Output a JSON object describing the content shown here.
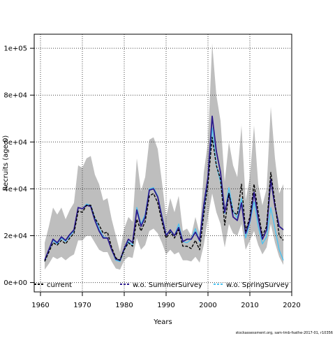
{
  "chart_data": {
    "type": "line",
    "title": "",
    "xlabel": "Years",
    "ylabel": "Recruits (age 0)",
    "xlim": [
      1958.5,
      2020.0
    ],
    "ylim": [
      -4000,
      106000
    ],
    "x_ticks": [
      1960,
      1970,
      1980,
      1990,
      2000,
      2010,
      2020
    ],
    "y_ticks": [
      0,
      20000,
      40000,
      60000,
      80000,
      100000
    ],
    "y_tick_labels": [
      "0e+00",
      "2e+04",
      "4e+04",
      "6e+04",
      "8e+04",
      "1e+05"
    ],
    "grid": true,
    "legend_position": "bottom",
    "x": [
      1961,
      1962,
      1963,
      1964,
      1965,
      1966,
      1967,
      1968,
      1969,
      1970,
      1971,
      1972,
      1973,
      1974,
      1975,
      1976,
      1977,
      1978,
      1979,
      1980,
      1981,
      1982,
      1983,
      1984,
      1985,
      1986,
      1987,
      1988,
      1989,
      1990,
      1991,
      1992,
      1993,
      1994,
      1995,
      1996,
      1997,
      1998,
      1999,
      2000,
      2001,
      2002,
      2003,
      2004,
      2005,
      2006,
      2007,
      2008,
      2009,
      2010,
      2011,
      2012,
      2013,
      2014,
      2015,
      2016,
      2017,
      2018
    ],
    "band": {
      "lower": [
        5500,
        8000,
        11000,
        10000,
        11000,
        9500,
        11000,
        12000,
        18000,
        18000,
        20000,
        20000,
        17000,
        14000,
        13000,
        13000,
        9000,
        6000,
        5500,
        9500,
        11000,
        10500,
        19000,
        14000,
        16000,
        22000,
        23000,
        21000,
        17000,
        12000,
        14000,
        12000,
        13000,
        9500,
        9500,
        9000,
        11000,
        8500,
        16000,
        28000,
        38000,
        30000,
        25000,
        15000,
        25000,
        21000,
        20000,
        25000,
        14000,
        18000,
        22000,
        16000,
        12000,
        15000,
        25000,
        17000,
        11000,
        7500
      ],
      "upper": [
        17000,
        24000,
        32000,
        29000,
        32000,
        27000,
        31000,
        34000,
        50000,
        49000,
        53000,
        54000,
        46000,
        42000,
        35000,
        36000,
        27000,
        20000,
        13000,
        23000,
        28000,
        26000,
        53000,
        39000,
        45000,
        61000,
        62000,
        57000,
        43000,
        28000,
        36000,
        30000,
        37000,
        22000,
        23000,
        20000,
        28000,
        21000,
        47000,
        60000,
        102000,
        80000,
        69000,
        43000,
        60000,
        50000,
        45000,
        67000,
        35000,
        45000,
        67000,
        42000,
        33000,
        40000,
        75000,
        53000,
        38000,
        42000
      ]
    },
    "series": [
      {
        "name": "current",
        "color": "#000000",
        "values": [
          9000,
          13000,
          17000,
          16000,
          18000,
          16500,
          19000,
          21000,
          30500,
          30000,
          33000,
          33000,
          27500,
          24500,
          21000,
          21500,
          15000,
          10500,
          9500,
          14000,
          17000,
          15500,
          27000,
          22000,
          26000,
          37000,
          38000,
          34000,
          26000,
          19000,
          21500,
          19000,
          22500,
          15500,
          15500,
          14500,
          18000,
          14000,
          29000,
          42000,
          62000,
          50000,
          44000,
          24500,
          38000,
          30000,
          29000,
          42000,
          22000,
          28000,
          42000,
          30000,
          20000,
          24000,
          47000,
          34000,
          20000,
          18000
        ]
      },
      {
        "name": "w.o. SummerSurvey",
        "color": "#2c1a8c",
        "values": [
          9500,
          14000,
          18500,
          17000,
          19500,
          18000,
          20500,
          22500,
          32000,
          31500,
          33000,
          32500,
          26500,
          22000,
          19000,
          19000,
          14000,
          10000,
          9500,
          14500,
          18500,
          17000,
          31000,
          24000,
          28000,
          39500,
          40000,
          36500,
          28000,
          20000,
          22500,
          20000,
          23500,
          17500,
          18500,
          18500,
          21500,
          18000,
          33000,
          45000,
          71000,
          56000,
          47000,
          30000,
          38000,
          28000,
          26500,
          34000,
          21000,
          26500,
          38500,
          27500,
          18500,
          22500,
          44000,
          32500,
          24000,
          22500
        ]
      },
      {
        "name": "w.o. SpringSurvey",
        "color": "#4ec3f0",
        "values": [
          9000,
          13500,
          18000,
          16500,
          19000,
          17500,
          20000,
          22000,
          32000,
          31500,
          33500,
          33000,
          27500,
          23000,
          19500,
          19000,
          14000,
          9500,
          9000,
          14000,
          17500,
          16000,
          32000,
          25000,
          29000,
          40000,
          40500,
          37000,
          28500,
          20500,
          22000,
          20000,
          25000,
          17500,
          17000,
          18500,
          23000,
          17500,
          31000,
          44000,
          66000,
          50000,
          43000,
          29500,
          40500,
          30500,
          27500,
          36000,
          19000,
          25500,
          34500,
          24000,
          16500,
          19500,
          32000,
          23000,
          14000,
          9500
        ]
      }
    ]
  },
  "legend": {
    "items": [
      {
        "label": "current",
        "color": "#000000",
        "style": "dashed"
      },
      {
        "label": "w.o. SummerSurvey",
        "color": "#2c1a8c",
        "style": "dashed"
      },
      {
        "label": "w.o. SpringSurvey",
        "color": "#4ec3f0",
        "style": "dashed"
      }
    ]
  },
  "footer": "stockassessment.org, sam-tmb-fsathe-2017-01, r10356",
  "colors": {
    "band_fill": "#bebebe",
    "grid": "#444444",
    "axis": "#000000"
  }
}
